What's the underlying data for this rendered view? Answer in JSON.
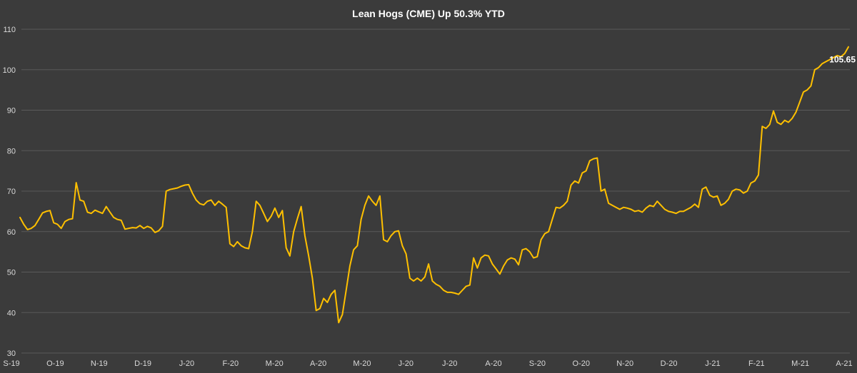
{
  "chart_data": {
    "type": "line",
    "title": "Lean Hogs (CME) Up 50.3% YTD",
    "xlabel": "",
    "ylabel": "",
    "ylim": [
      30,
      110
    ],
    "yticks": [
      30,
      40,
      50,
      60,
      70,
      80,
      90,
      100,
      110
    ],
    "xticks": [
      "S-19",
      "O-19",
      "N-19",
      "D-19",
      "J-20",
      "F-20",
      "M-20",
      "A-20",
      "M-20",
      "J-20",
      "J-20",
      "A-20",
      "S-20",
      "O-20",
      "N-20",
      "D-20",
      "J-21",
      "F-21",
      "M-21",
      "A-21"
    ],
    "grid": true,
    "legend": "none",
    "line_color": "#ffc000",
    "series": [
      {
        "values": [
          63.5,
          61.8,
          60.5,
          60.8,
          61.5,
          63.0,
          64.6,
          65.0,
          65.2,
          62.2,
          61.8,
          60.8,
          62.5,
          63.0,
          63.2,
          72.1,
          67.8,
          67.5,
          64.8,
          64.5,
          65.3,
          64.9,
          64.5,
          66.2,
          64.8,
          63.5,
          63.0,
          62.8,
          60.6,
          60.8,
          61.0,
          60.9,
          61.5,
          60.8,
          61.3,
          60.9,
          59.8,
          60.2,
          61.3,
          70.0,
          70.4,
          70.6,
          70.8,
          71.2,
          71.5,
          71.6,
          69.5,
          67.8,
          66.9,
          66.6,
          67.5,
          67.8,
          66.5,
          67.5,
          66.8,
          66.0,
          57.0,
          56.3,
          57.5,
          56.5,
          56.0,
          55.8,
          60.0,
          67.5,
          66.5,
          64.5,
          62.5,
          63.8,
          65.8,
          63.5,
          65.2,
          56.0,
          54.0,
          60.0,
          63.2,
          66.2,
          59.0,
          54.0,
          48.5,
          40.5,
          41.0,
          43.5,
          42.5,
          44.5,
          45.5,
          37.5,
          39.5,
          45.5,
          51.5,
          55.5,
          56.5,
          63.0,
          66.5,
          68.8,
          67.5,
          66.5,
          68.8,
          58.0,
          57.5,
          59.0,
          60.0,
          60.2,
          56.5,
          54.5,
          48.5,
          47.8,
          48.5,
          47.8,
          48.8,
          52.0,
          47.8,
          47.0,
          46.5,
          45.5,
          45.0,
          45.0,
          44.8,
          44.5,
          45.5,
          46.5,
          46.8,
          53.5,
          51.0,
          53.5,
          54.2,
          54.0,
          52.0,
          50.8,
          49.5,
          51.5,
          53.0,
          53.5,
          53.2,
          51.8,
          55.5,
          55.8,
          55.0,
          53.5,
          53.8,
          58.0,
          59.5,
          60.0,
          63.0,
          66.0,
          65.8,
          66.5,
          67.5,
          71.5,
          72.5,
          72.0,
          74.5,
          75.0,
          77.5,
          78.0,
          78.2,
          70.0,
          70.5,
          67.0,
          66.5,
          66.0,
          65.5,
          66.0,
          65.8,
          65.5,
          65.0,
          65.2,
          64.8,
          65.8,
          66.5,
          66.2,
          67.5,
          66.5,
          65.5,
          65.0,
          64.8,
          64.5,
          65.0,
          65.0,
          65.5,
          66.0,
          66.8,
          66.0,
          70.5,
          71.0,
          69.0,
          68.5,
          68.8,
          66.5,
          67.0,
          68.0,
          70.0,
          70.5,
          70.3,
          69.5,
          70.0,
          72.0,
          72.5,
          74.0,
          86.0,
          85.5,
          86.5,
          89.8,
          87.0,
          86.5,
          87.5,
          87.0,
          88.0,
          89.5,
          92.0,
          94.5,
          95.0,
          96.0,
          100.0,
          100.5,
          101.5,
          102.0,
          102.5,
          103.0,
          103.5,
          103.2,
          104.0,
          105.65
        ],
        "last_label": "105.65"
      }
    ]
  }
}
